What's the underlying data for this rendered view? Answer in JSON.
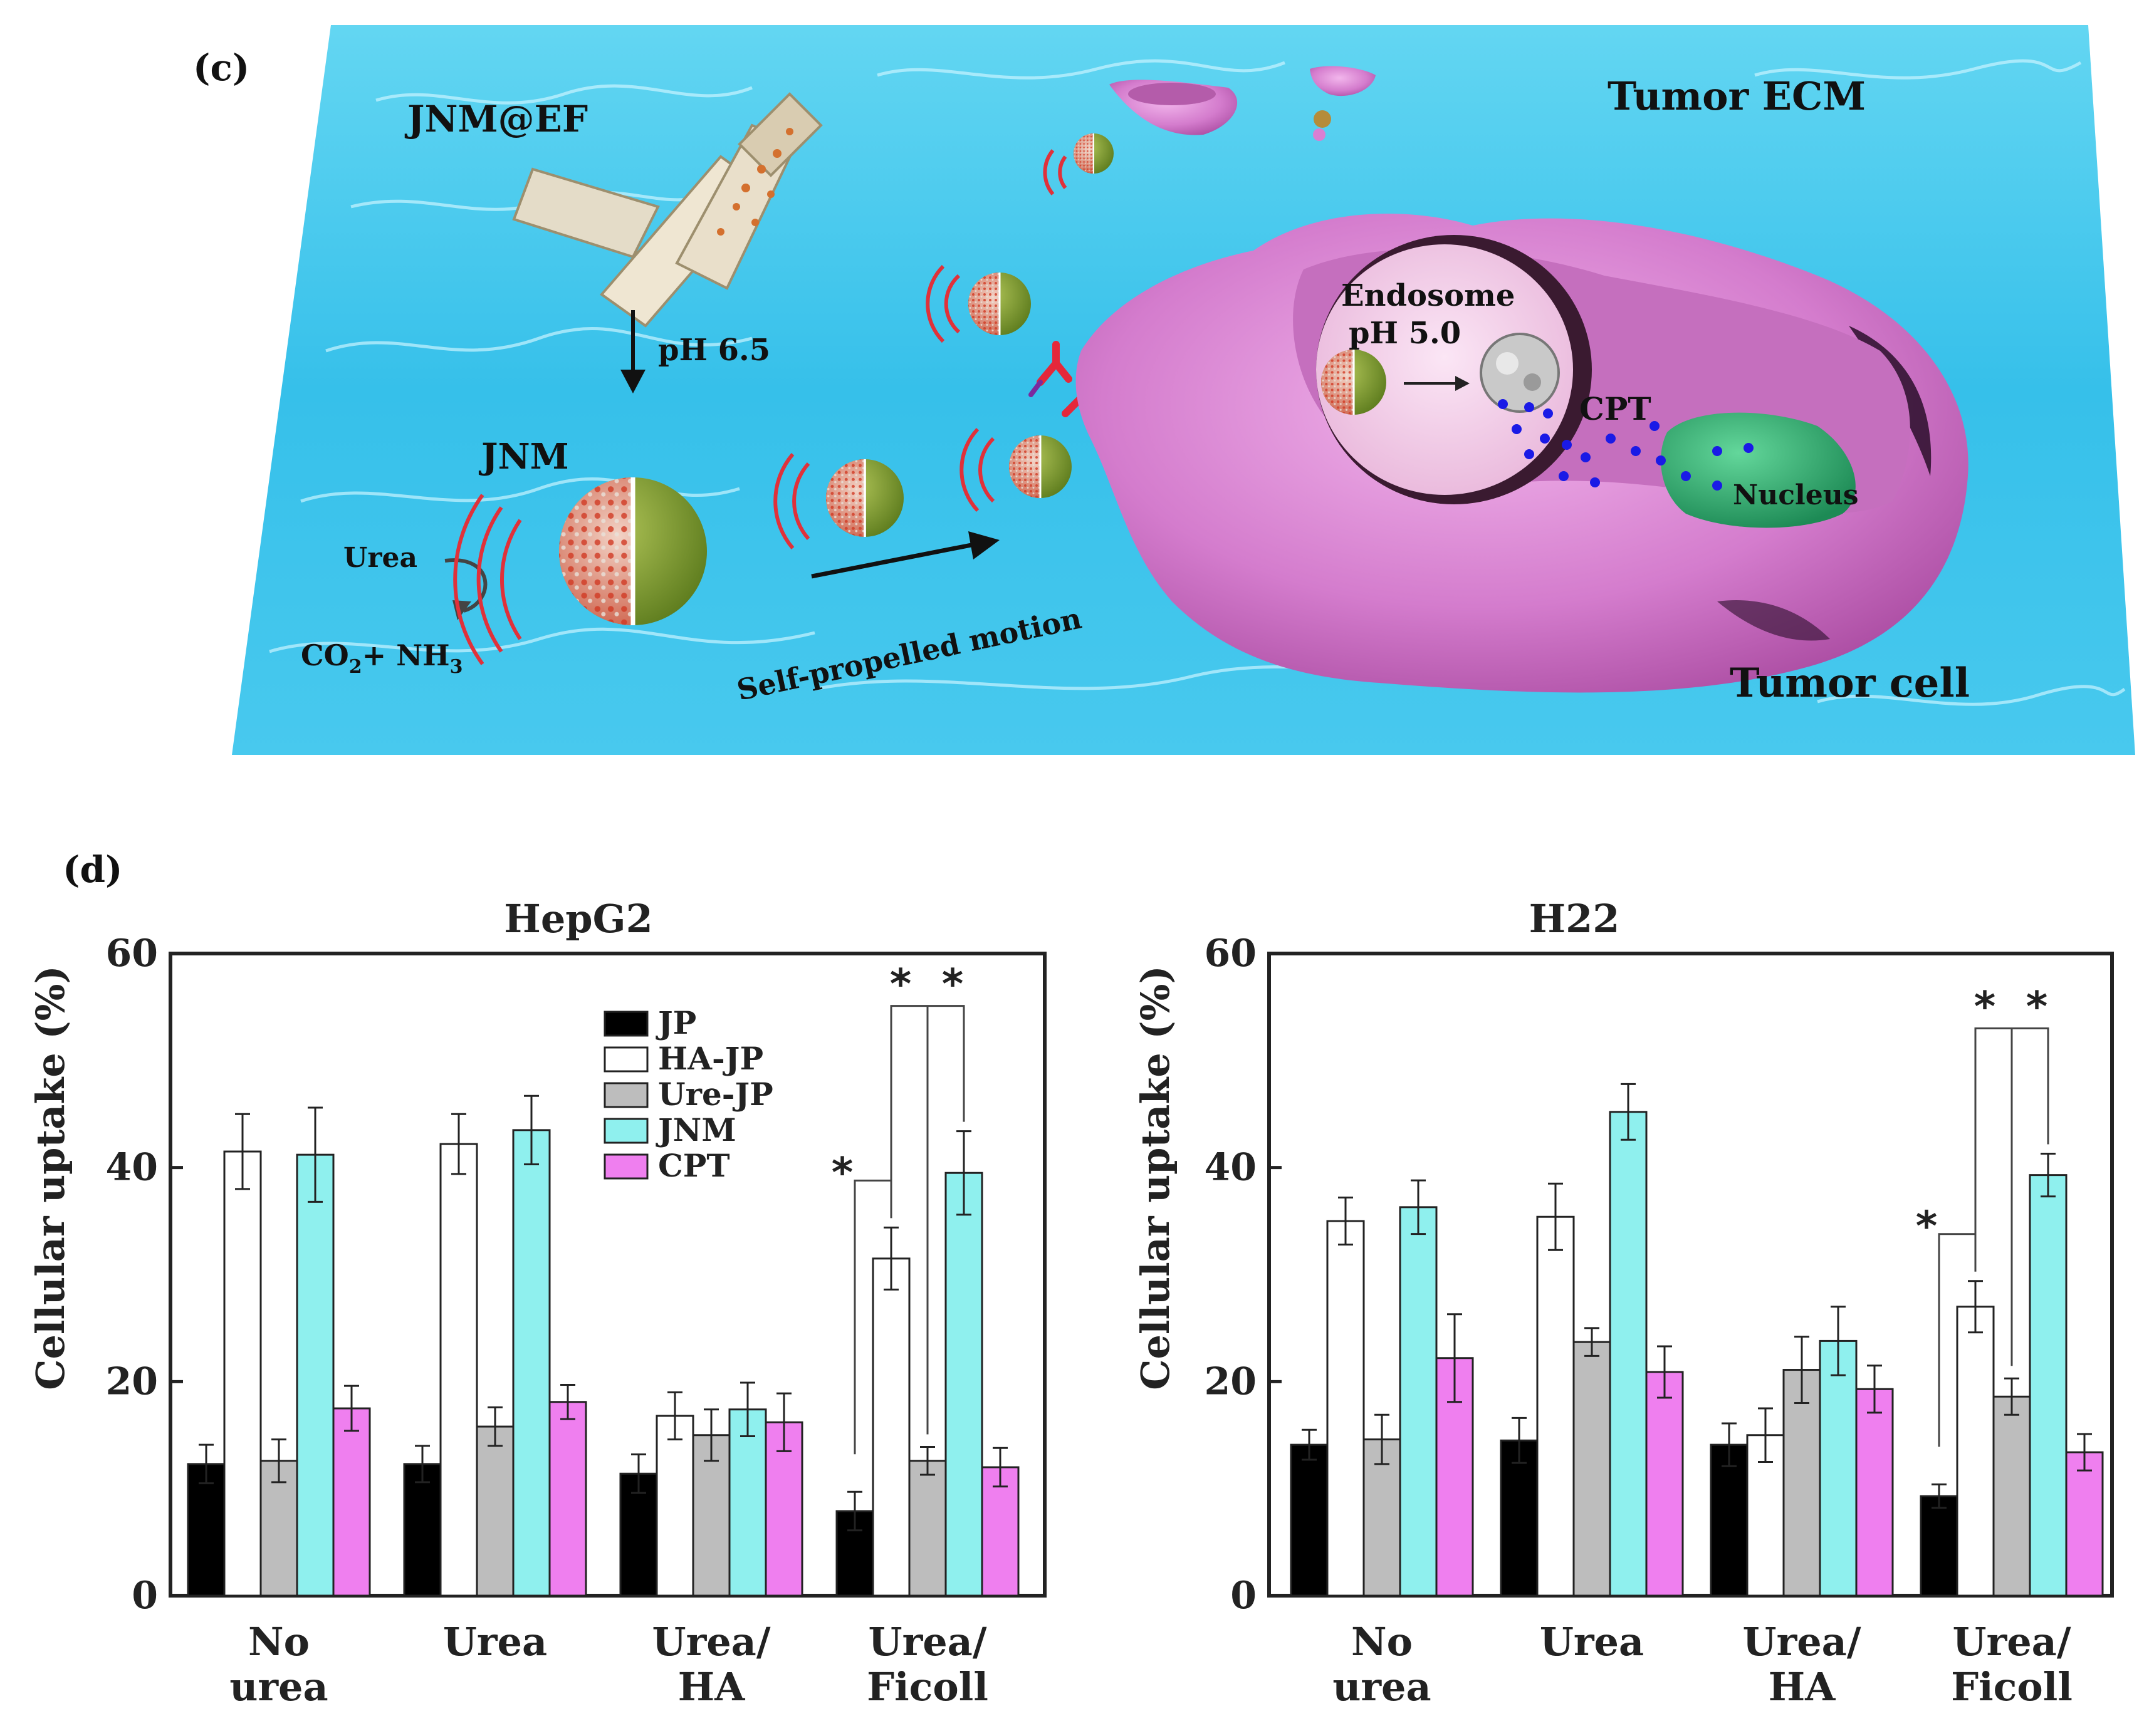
{
  "panel_c": {
    "label": "(c)",
    "labels": {
      "jnm_ef": "JNM@EF",
      "tumor_ecm": "Tumor ECM",
      "ph65": "pH 6.5",
      "jnm": "JNM",
      "urea": "Urea",
      "co2": "CO",
      "co2_sub": "2",
      "plus_nh3": "+ NH",
      "nh3_sub": "3",
      "motion": "Self-propelled motion",
      "endosome": "Endosome",
      "ph50": "pH 5.0",
      "cpt": "CPT",
      "nucleus": "Nucleus",
      "tumor_cell": "Tumor cell"
    },
    "colors": {
      "water": "#3ec6ec",
      "cell": "#d97fd2",
      "nucleus": "#2ea56b",
      "particle_green": "#7f9a2c",
      "particle_red": "#d9533c",
      "drug": "#1a1ae6"
    }
  },
  "panel_d": {
    "label": "(d)",
    "legend": [
      {
        "name": "JP",
        "color": "#000000"
      },
      {
        "name": "HA-JP",
        "color": "#ffffff"
      },
      {
        "name": "Ure-JP",
        "color": "#bdbdbd"
      },
      {
        "name": "JNM",
        "color": "#8ff0ee"
      },
      {
        "name": "CPT",
        "color": "#ef7fef"
      }
    ],
    "sig_mark": "*"
  },
  "chart_data": [
    {
      "type": "bar",
      "title": "HepG2",
      "ylabel": "Cellular uptake (%)",
      "ylim": [
        0,
        60
      ],
      "yticks": [
        "0",
        "20",
        "40",
        "60"
      ],
      "categories": [
        [
          "No",
          "urea"
        ],
        [
          "Urea"
        ],
        [
          "Urea/",
          "HA"
        ],
        [
          "Urea/",
          "Ficoll"
        ]
      ],
      "series": [
        {
          "name": "JP",
          "values": [
            12.3,
            12.3,
            11.4,
            7.9
          ],
          "errors": [
            1.8,
            1.7,
            1.8,
            1.8
          ]
        },
        {
          "name": "HA-JP",
          "values": [
            41.5,
            42.2,
            16.8,
            31.5
          ],
          "errors": [
            3.5,
            2.8,
            2.2,
            2.9
          ]
        },
        {
          "name": "Ure-JP",
          "values": [
            12.6,
            15.8,
            15.0,
            12.6
          ],
          "errors": [
            2.0,
            1.8,
            2.4,
            1.3
          ]
        },
        {
          "name": "JNM",
          "values": [
            41.2,
            43.5,
            17.4,
            39.5
          ],
          "errors": [
            4.4,
            3.2,
            2.5,
            3.9
          ]
        },
        {
          "name": "CPT",
          "values": [
            17.5,
            18.1,
            16.2,
            12.0
          ],
          "errors": [
            2.1,
            1.6,
            2.7,
            1.8
          ]
        }
      ],
      "legend_position": "top-center",
      "grid": false
    },
    {
      "type": "bar",
      "title": "H22",
      "ylabel": "Cellular uptake (%)",
      "ylim": [
        0,
        60
      ],
      "yticks": [
        "0",
        "20",
        "40",
        "60"
      ],
      "categories": [
        [
          "No",
          "urea"
        ],
        [
          "Urea"
        ],
        [
          "Urea/",
          "HA"
        ],
        [
          "Urea/",
          "Ficoll"
        ]
      ],
      "series": [
        {
          "name": "JP",
          "values": [
            14.1,
            14.5,
            14.1,
            9.3
          ],
          "errors": [
            1.4,
            2.1,
            2.0,
            1.1
          ]
        },
        {
          "name": "HA-JP",
          "values": [
            35.0,
            35.4,
            15.0,
            27.0
          ],
          "errors": [
            2.2,
            3.1,
            2.5,
            2.4
          ]
        },
        {
          "name": "Ure-JP",
          "values": [
            14.6,
            23.7,
            21.1,
            18.6
          ],
          "errors": [
            2.3,
            1.3,
            3.1,
            1.7
          ]
        },
        {
          "name": "JNM",
          "values": [
            36.3,
            45.2,
            23.8,
            39.3
          ],
          "errors": [
            2.5,
            2.6,
            3.2,
            2.0
          ]
        },
        {
          "name": "CPT",
          "values": [
            22.2,
            20.9,
            19.3,
            13.4
          ],
          "errors": [
            4.1,
            2.4,
            2.2,
            1.7
          ]
        }
      ],
      "grid": false
    }
  ]
}
